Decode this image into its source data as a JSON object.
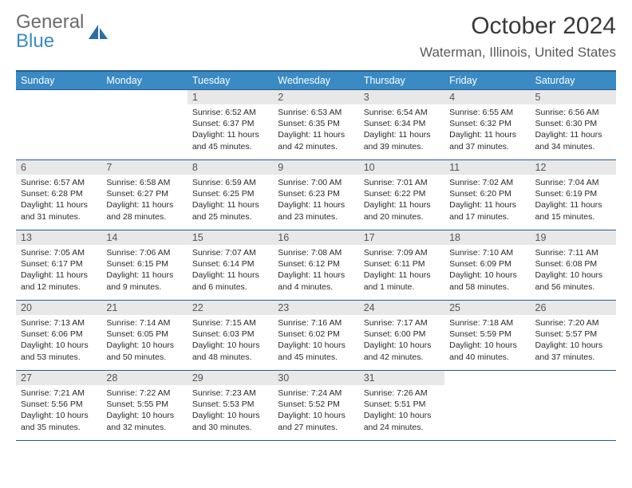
{
  "logo": {
    "text_general": "General",
    "text_blue": "Blue",
    "sail_color": "#2a6fa8"
  },
  "title": "October 2024",
  "location": "Waterman, Illinois, United States",
  "colors": {
    "header_bg": "#3a8ac4",
    "header_border": "#2a5a8a",
    "daynum_bg": "#e8e8e8",
    "text_primary": "#2a2a2a",
    "text_muted": "#5a5a5a"
  },
  "weekdays": [
    "Sunday",
    "Monday",
    "Tuesday",
    "Wednesday",
    "Thursday",
    "Friday",
    "Saturday"
  ],
  "first_weekday_index": 2,
  "days": [
    {
      "n": 1,
      "sr": "6:52 AM",
      "ss": "6:37 PM",
      "dl": "11 hours and 45 minutes."
    },
    {
      "n": 2,
      "sr": "6:53 AM",
      "ss": "6:35 PM",
      "dl": "11 hours and 42 minutes."
    },
    {
      "n": 3,
      "sr": "6:54 AM",
      "ss": "6:34 PM",
      "dl": "11 hours and 39 minutes."
    },
    {
      "n": 4,
      "sr": "6:55 AM",
      "ss": "6:32 PM",
      "dl": "11 hours and 37 minutes."
    },
    {
      "n": 5,
      "sr": "6:56 AM",
      "ss": "6:30 PM",
      "dl": "11 hours and 34 minutes."
    },
    {
      "n": 6,
      "sr": "6:57 AM",
      "ss": "6:28 PM",
      "dl": "11 hours and 31 minutes."
    },
    {
      "n": 7,
      "sr": "6:58 AM",
      "ss": "6:27 PM",
      "dl": "11 hours and 28 minutes."
    },
    {
      "n": 8,
      "sr": "6:59 AM",
      "ss": "6:25 PM",
      "dl": "11 hours and 25 minutes."
    },
    {
      "n": 9,
      "sr": "7:00 AM",
      "ss": "6:23 PM",
      "dl": "11 hours and 23 minutes."
    },
    {
      "n": 10,
      "sr": "7:01 AM",
      "ss": "6:22 PM",
      "dl": "11 hours and 20 minutes."
    },
    {
      "n": 11,
      "sr": "7:02 AM",
      "ss": "6:20 PM",
      "dl": "11 hours and 17 minutes."
    },
    {
      "n": 12,
      "sr": "7:04 AM",
      "ss": "6:19 PM",
      "dl": "11 hours and 15 minutes."
    },
    {
      "n": 13,
      "sr": "7:05 AM",
      "ss": "6:17 PM",
      "dl": "11 hours and 12 minutes."
    },
    {
      "n": 14,
      "sr": "7:06 AM",
      "ss": "6:15 PM",
      "dl": "11 hours and 9 minutes."
    },
    {
      "n": 15,
      "sr": "7:07 AM",
      "ss": "6:14 PM",
      "dl": "11 hours and 6 minutes."
    },
    {
      "n": 16,
      "sr": "7:08 AM",
      "ss": "6:12 PM",
      "dl": "11 hours and 4 minutes."
    },
    {
      "n": 17,
      "sr": "7:09 AM",
      "ss": "6:11 PM",
      "dl": "11 hours and 1 minute."
    },
    {
      "n": 18,
      "sr": "7:10 AM",
      "ss": "6:09 PM",
      "dl": "10 hours and 58 minutes."
    },
    {
      "n": 19,
      "sr": "7:11 AM",
      "ss": "6:08 PM",
      "dl": "10 hours and 56 minutes."
    },
    {
      "n": 20,
      "sr": "7:13 AM",
      "ss": "6:06 PM",
      "dl": "10 hours and 53 minutes."
    },
    {
      "n": 21,
      "sr": "7:14 AM",
      "ss": "6:05 PM",
      "dl": "10 hours and 50 minutes."
    },
    {
      "n": 22,
      "sr": "7:15 AM",
      "ss": "6:03 PM",
      "dl": "10 hours and 48 minutes."
    },
    {
      "n": 23,
      "sr": "7:16 AM",
      "ss": "6:02 PM",
      "dl": "10 hours and 45 minutes."
    },
    {
      "n": 24,
      "sr": "7:17 AM",
      "ss": "6:00 PM",
      "dl": "10 hours and 42 minutes."
    },
    {
      "n": 25,
      "sr": "7:18 AM",
      "ss": "5:59 PM",
      "dl": "10 hours and 40 minutes."
    },
    {
      "n": 26,
      "sr": "7:20 AM",
      "ss": "5:57 PM",
      "dl": "10 hours and 37 minutes."
    },
    {
      "n": 27,
      "sr": "7:21 AM",
      "ss": "5:56 PM",
      "dl": "10 hours and 35 minutes."
    },
    {
      "n": 28,
      "sr": "7:22 AM",
      "ss": "5:55 PM",
      "dl": "10 hours and 32 minutes."
    },
    {
      "n": 29,
      "sr": "7:23 AM",
      "ss": "5:53 PM",
      "dl": "10 hours and 30 minutes."
    },
    {
      "n": 30,
      "sr": "7:24 AM",
      "ss": "5:52 PM",
      "dl": "10 hours and 27 minutes."
    },
    {
      "n": 31,
      "sr": "7:26 AM",
      "ss": "5:51 PM",
      "dl": "10 hours and 24 minutes."
    }
  ],
  "labels": {
    "sunrise": "Sunrise:",
    "sunset": "Sunset:",
    "daylight": "Daylight:"
  }
}
